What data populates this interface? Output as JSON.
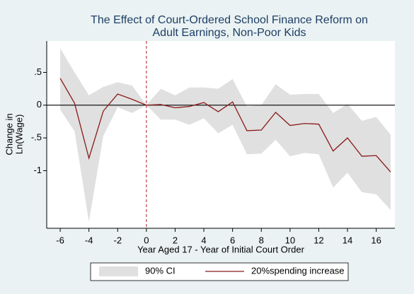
{
  "chart_data": {
    "type": "line",
    "title": [
      "The Effect of Court-Ordered School Finance Reform on",
      "Adult Earnings, Non-Poor Kids"
    ],
    "xlabel": "Year Aged 17 - Year of Initial Court Order",
    "ylabel": [
      "Change in",
      "Ln(Wage)"
    ],
    "x": [
      -6,
      -5,
      -4,
      -3,
      -2,
      -1,
      0,
      1,
      2,
      3,
      4,
      5,
      6,
      7,
      8,
      9,
      10,
      11,
      12,
      13,
      14,
      15,
      16,
      17
    ],
    "series": [
      {
        "name": "90% CI",
        "kind": "band",
        "color": "#e0e0e0",
        "upper": [
          0.87,
          0.5,
          0.15,
          0.28,
          0.35,
          0.3,
          0,
          0.25,
          0.15,
          0.27,
          0.27,
          0.25,
          0.4,
          -0.02,
          0,
          0.32,
          0.16,
          0.17,
          0.17,
          -0.12,
          0.02,
          -0.24,
          -0.18,
          -0.45
        ],
        "lower": [
          -0.07,
          -0.4,
          -1.78,
          -0.47,
          -0.03,
          -0.12,
          0,
          -0.22,
          -0.22,
          -0.3,
          -0.2,
          -0.43,
          -0.3,
          -0.75,
          -0.74,
          -0.53,
          -0.78,
          -0.73,
          -0.75,
          -1.26,
          -1.03,
          -1.33,
          -1.36,
          -1.6
        ]
      },
      {
        "name": "20%spending increase",
        "kind": "line",
        "color": "#8b1a1a",
        "values": [
          0.41,
          0.03,
          -0.81,
          -0.09,
          0.17,
          0.09,
          0,
          0.01,
          -0.04,
          -0.02,
          0.04,
          -0.1,
          0.05,
          -0.39,
          -0.38,
          -0.11,
          -0.31,
          -0.28,
          -0.29,
          -0.7,
          -0.5,
          -0.78,
          -0.77,
          -1.02
        ]
      }
    ],
    "xlim": [
      -6.94,
      17.3
    ],
    "ylim": [
      -1.88,
      0.98
    ],
    "xticks": [
      -6,
      -4,
      -2,
      0,
      2,
      4,
      6,
      8,
      10,
      12,
      14,
      16
    ],
    "yticks": [
      {
        "value": 0.5,
        "label": ".5"
      },
      0,
      {
        "value": -0.5,
        "label": "-.5"
      },
      -1
    ],
    "xline": 0,
    "yline": 0,
    "grid": false,
    "legend": "bottom"
  }
}
